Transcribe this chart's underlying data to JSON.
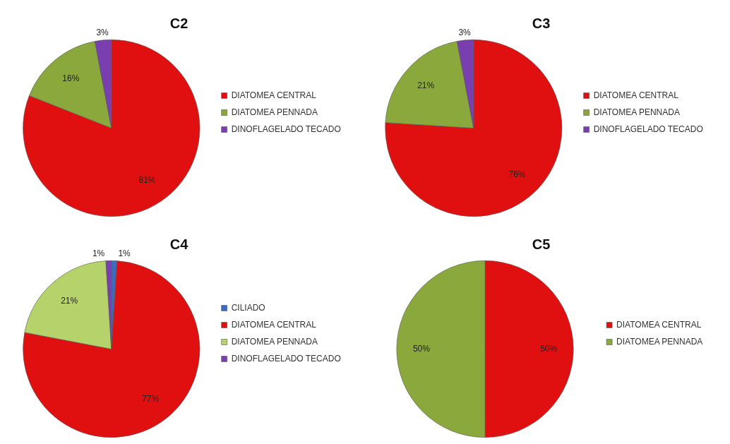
{
  "chart_data": [
    {
      "type": "pie",
      "title": "C2",
      "categories": [
        "DIATOMEA CENTRAL",
        "DIATOMEA PENNADA",
        "DINOFLAGELADO TECADO"
      ],
      "values": [
        81,
        16,
        3
      ],
      "colors": [
        "#e01010",
        "#8aa83c",
        "#7a3fae"
      ],
      "value_labels": [
        "81%",
        "16%",
        "3%"
      ],
      "legend": "right"
    },
    {
      "type": "pie",
      "title": "C3",
      "categories": [
        "DIATOMEA CENTRAL",
        "DIATOMEA PENNADA",
        "DINOFLAGELADO TECADO"
      ],
      "values": [
        76,
        21,
        3
      ],
      "colors": [
        "#e01010",
        "#8aa83c",
        "#7a3fae"
      ],
      "value_labels": [
        "76%",
        "21%",
        "3%"
      ],
      "legend": "right"
    },
    {
      "type": "pie",
      "title": "C4",
      "categories": [
        "CILIADO",
        "DIATOMEA CENTRAL",
        "DIATOMEA PENNADA",
        "DINOFLAGELADO TECADO"
      ],
      "values": [
        1,
        77,
        21,
        1
      ],
      "colors": [
        "#3b6cc4",
        "#e01010",
        "#b6d36b",
        "#7a3fae"
      ],
      "value_labels": [
        "1%",
        "77%",
        "21%",
        "1%"
      ],
      "legend": "right"
    },
    {
      "type": "pie",
      "title": "C5",
      "categories": [
        "DIATOMEA CENTRAL",
        "DIATOMEA PENNADA"
      ],
      "values": [
        50,
        50
      ],
      "colors": [
        "#e01010",
        "#8aa83c"
      ],
      "value_labels": [
        "50%",
        "50%"
      ],
      "legend": "right"
    }
  ]
}
